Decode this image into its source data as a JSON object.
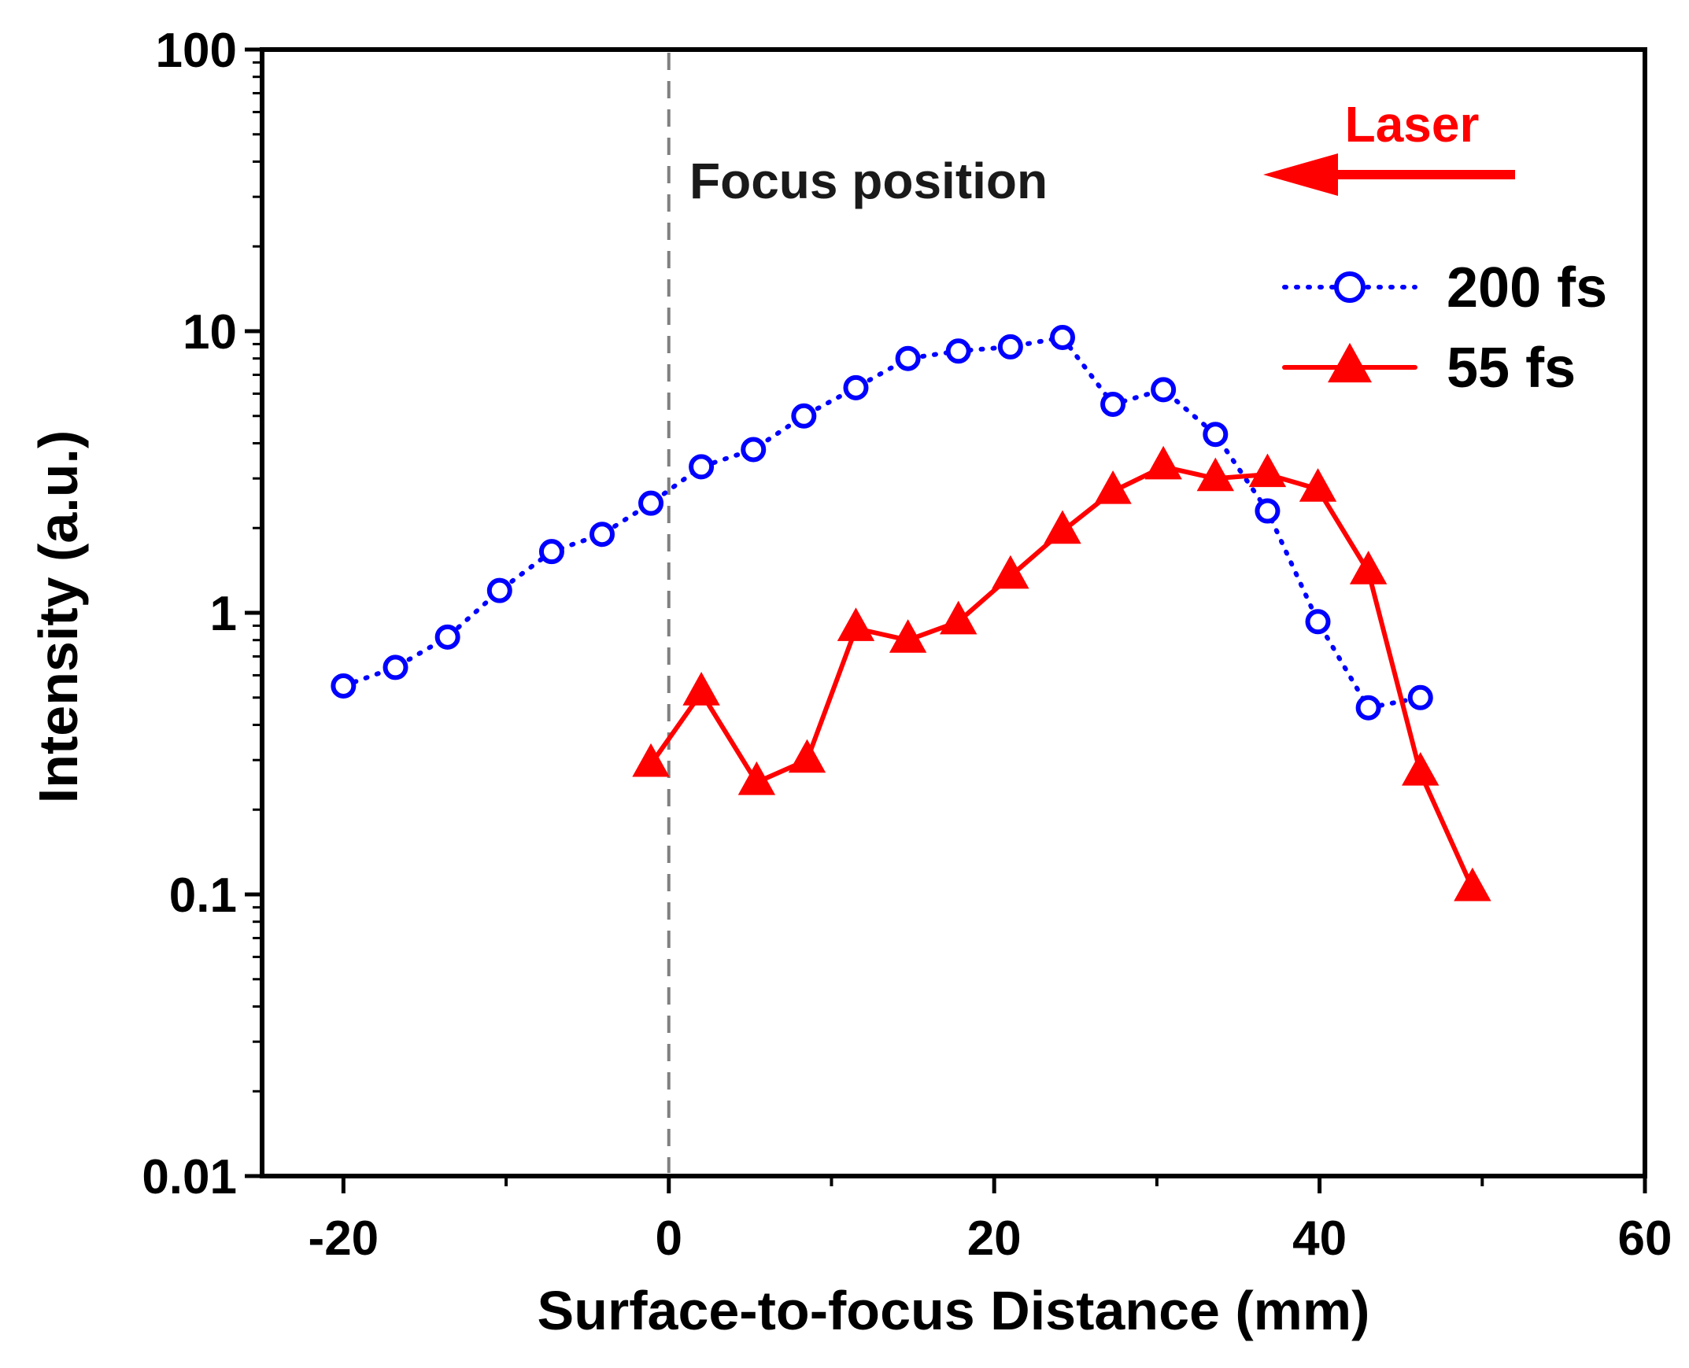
{
  "chart_data": {
    "type": "line",
    "xlabel": "Surface-to-focus Distance (mm)",
    "ylabel": "Intensity (a.u.)",
    "xscale": "linear",
    "yscale": "log",
    "xlim": [
      -25,
      60
    ],
    "ylim": [
      0.01,
      100
    ],
    "xticks": [
      {
        "value": -20,
        "label": "-20"
      },
      {
        "value": 0,
        "label": "0"
      },
      {
        "value": 20,
        "label": "20"
      },
      {
        "value": 40,
        "label": "40"
      },
      {
        "value": 60,
        "label": "60"
      }
    ],
    "yticks": [
      {
        "value": 0.01,
        "label": "0.01"
      },
      {
        "value": 0.1,
        "label": "0.1"
      },
      {
        "value": 1,
        "label": "1"
      },
      {
        "value": 10,
        "label": "10"
      },
      {
        "value": 100,
        "label": "100"
      }
    ],
    "series": [
      {
        "name": "200 fs",
        "color": "#0000ff",
        "marker": "open-circle",
        "line_style": "dotted",
        "x": [
          -20,
          -16.8,
          -13.6,
          -10.4,
          -7.2,
          -4.1,
          -1.1,
          2,
          5.2,
          8.3,
          11.5,
          14.7,
          17.8,
          21,
          24.2,
          27.3,
          30.4,
          33.6,
          36.8,
          39.9,
          43,
          46.2
        ],
        "y": [
          0.55,
          0.64,
          0.82,
          1.2,
          1.65,
          1.9,
          2.45,
          3.3,
          3.8,
          5.0,
          6.3,
          8.0,
          8.5,
          8.8,
          9.5,
          5.5,
          6.2,
          4.3,
          2.3,
          0.93,
          0.46,
          0.5
        ]
      },
      {
        "name": "55 fs",
        "color": "#ff0000",
        "marker": "filled-triangle",
        "line_style": "solid",
        "x": [
          -1.1,
          2,
          5.4,
          8.5,
          11.5,
          14.7,
          17.8,
          21,
          24.2,
          27.3,
          30.4,
          33.6,
          36.8,
          39.9,
          43,
          46.2,
          49.4
        ],
        "y": [
          0.29,
          0.52,
          0.25,
          0.3,
          0.88,
          0.8,
          0.93,
          1.35,
          1.95,
          2.7,
          3.3,
          3.0,
          3.1,
          2.75,
          1.4,
          0.27,
          0.105
        ]
      }
    ],
    "reference_line": {
      "x": 0,
      "style": "dashed",
      "color": "#808080"
    },
    "annotations": {
      "focus_label": "Focus position",
      "laser_label": "Laser",
      "laser_arrow_direction": "left"
    },
    "legend": {
      "position": "top-right"
    }
  }
}
